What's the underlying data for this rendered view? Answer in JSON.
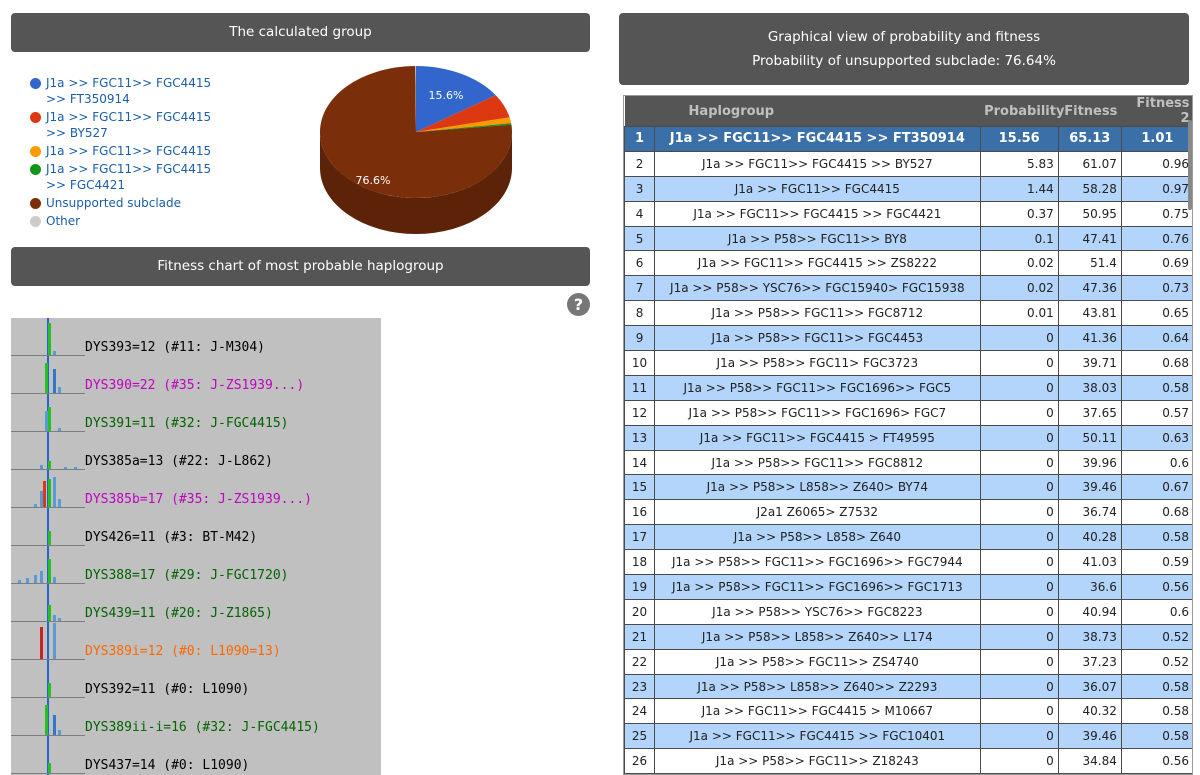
{
  "headers": {
    "calculated_group": "The calculated group",
    "fitness_chart": "Fitness chart of most probable haplogroup",
    "graphical_view": "Graphical view of probability and fitness",
    "unsupported_text": "Probability of unsupported subclade: 76.64%"
  },
  "legend": [
    {
      "label": "J1a >> FGC11>> FGC4415 >> FT350914",
      "color": "#3366cc"
    },
    {
      "label": "J1a >> FGC11>> FGC4415 >> BY527",
      "color": "#dc3912"
    },
    {
      "label": "J1a >> FGC11>> FGC4415",
      "color": "#ff9900"
    },
    {
      "label": "J1a >> FGC11>> FGC4415 >> FGC4421",
      "color": "#109618"
    },
    {
      "label": "Unsupported subclade",
      "color": "#7a2e0a"
    },
    {
      "label": "Other",
      "color": "#cccccc"
    }
  ],
  "chart_data": {
    "type": "pie",
    "slices": [
      {
        "name": "J1a >> FGC11>> FGC4415 >> FT350914",
        "value": 15.6,
        "color": "#3366cc"
      },
      {
        "name": "J1a >> FGC11>> FGC4415 >> BY527",
        "value": 5.83,
        "color": "#dc3912"
      },
      {
        "name": "J1a >> FGC11>> FGC4415",
        "value": 1.44,
        "color": "#ff9900"
      },
      {
        "name": "J1a >> FGC11>> FGC4415 >> FGC4421",
        "value": 0.37,
        "color": "#109618"
      },
      {
        "name": "Unsupported subclade",
        "value": 76.64,
        "color": "#7a2e0a"
      },
      {
        "name": "Other",
        "value": 0.12,
        "color": "#cccccc"
      }
    ],
    "slice_labels": [
      "15.6%",
      "76.6%"
    ]
  },
  "fitness_markers": [
    {
      "label": "DYS393=12 (#11: J-M304)",
      "color": "#000000",
      "bars": [
        {
          "dx": 0,
          "h": 32,
          "c": "#22c022"
        },
        {
          "dx": 5,
          "h": 4,
          "c": "#5b9bd5"
        }
      ]
    },
    {
      "label": "DYS390=22 (#35: J-ZS1939...)",
      "color": "#c000c0",
      "bars": [
        {
          "dx": -3,
          "h": 30,
          "c": "#22c022"
        },
        {
          "dx": 5,
          "h": 24,
          "c": "#3377cc"
        },
        {
          "dx": 10,
          "h": 6,
          "c": "#5b9bd5"
        }
      ]
    },
    {
      "label": "DYS391=11 (#32: J-FGC4415)",
      "color": "#006400",
      "bars": [
        {
          "dx": -3,
          "h": 20,
          "c": "#5b9bd5"
        },
        {
          "dx": 0,
          "h": 24,
          "c": "#22c022"
        },
        {
          "dx": 10,
          "h": 3,
          "c": "#5b9bd5"
        }
      ]
    },
    {
      "label": "DYS385a=13 (#22: J-L862)",
      "color": "#000000",
      "bars": [
        {
          "dx": -8,
          "h": 4,
          "c": "#5b9bd5"
        },
        {
          "dx": 0,
          "h": 8,
          "c": "#22c022"
        },
        {
          "dx": 16,
          "h": 2,
          "c": "#5b9bd5"
        },
        {
          "dx": 26,
          "h": 2,
          "c": "#5b9bd5"
        }
      ]
    },
    {
      "label": "DYS385b=17 (#35: J-ZS1939...)",
      "color": "#c000c0",
      "bars": [
        {
          "dx": -14,
          "h": 3,
          "c": "#5b9bd5"
        },
        {
          "dx": -8,
          "h": 16,
          "c": "#5b9bd5"
        },
        {
          "dx": -5,
          "h": 26,
          "c": "#dc3912"
        },
        {
          "dx": 0,
          "h": 28,
          "c": "#22c022"
        },
        {
          "dx": 5,
          "h": 30,
          "c": "#5b9bd5"
        },
        {
          "dx": 10,
          "h": 8,
          "c": "#5b9bd5"
        }
      ]
    },
    {
      "label": "DYS426=11 (#3: BT-M42)",
      "color": "#000000",
      "bars": [
        {
          "dx": 0,
          "h": 14,
          "c": "#22c022"
        }
      ]
    },
    {
      "label": "DYS388=17 (#29: J-FGC1720)",
      "color": "#006400",
      "bars": [
        {
          "dx": -30,
          "h": 3,
          "c": "#5b9bd5"
        },
        {
          "dx": -22,
          "h": 5,
          "c": "#5b9bd5"
        },
        {
          "dx": -14,
          "h": 8,
          "c": "#5b9bd5"
        },
        {
          "dx": -8,
          "h": 12,
          "c": "#5b9bd5"
        },
        {
          "dx": 0,
          "h": 24,
          "c": "#22c022"
        },
        {
          "dx": 5,
          "h": 6,
          "c": "#5b9bd5"
        }
      ]
    },
    {
      "label": "DYS439=11 (#20: J-Z1865)",
      "color": "#006400",
      "bars": [
        {
          "dx": 0,
          "h": 16,
          "c": "#22c022"
        },
        {
          "dx": 5,
          "h": 6,
          "c": "#5b9bd5"
        },
        {
          "dx": 10,
          "h": 3,
          "c": "#5b9bd5"
        }
      ]
    },
    {
      "label": "DYS389i=12 (#0: L1090=13)",
      "color": "#ff6600",
      "bars": [
        {
          "dx": -8,
          "h": 32,
          "c": "#cc2222"
        },
        {
          "dx": 5,
          "h": 36,
          "c": "#5b9bd5"
        }
      ]
    },
    {
      "label": "DYS392=11 (#0: L1090)",
      "color": "#000000",
      "bars": [
        {
          "dx": 0,
          "h": 14,
          "c": "#22c022"
        }
      ]
    },
    {
      "label": "DYS389ii-i=16 (#32: J-FGC4415)",
      "color": "#006400",
      "bars": [
        {
          "dx": -3,
          "h": 30,
          "c": "#22c022"
        },
        {
          "dx": 5,
          "h": 20,
          "c": "#3377cc"
        },
        {
          "dx": 10,
          "h": 5,
          "c": "#5b9bd5"
        }
      ]
    },
    {
      "label": "DYS437=14 (#0: L1090)",
      "color": "#000000",
      "bars": [
        {
          "dx": 0,
          "h": 10,
          "c": "#22c022"
        }
      ]
    }
  ],
  "table": {
    "columns": [
      "Haplogroup",
      "Probability",
      "Fitness",
      "Fitness 2"
    ],
    "rows": [
      {
        "n": "1",
        "hg": "J1a >> FGC11>> FGC4415 >> FT350914",
        "p": "15.56",
        "f": "65.13",
        "f2": "1.01"
      },
      {
        "n": "2",
        "hg": "J1a >> FGC11>> FGC4415 >> BY527",
        "p": "5.83",
        "f": "61.07",
        "f2": "0.96"
      },
      {
        "n": "3",
        "hg": "J1a >> FGC11>> FGC4415",
        "p": "1.44",
        "f": "58.28",
        "f2": "0.97"
      },
      {
        "n": "4",
        "hg": "J1a >> FGC11>> FGC4415 >> FGC4421",
        "p": "0.37",
        "f": "50.95",
        "f2": "0.75"
      },
      {
        "n": "5",
        "hg": "J1a >> P58>> FGC11>> BY8",
        "p": "0.1",
        "f": "47.41",
        "f2": "0.76"
      },
      {
        "n": "6",
        "hg": "J1a >> FGC11>> FGC4415 >> ZS8222",
        "p": "0.02",
        "f": "51.4",
        "f2": "0.69"
      },
      {
        "n": "7",
        "hg": "J1a >> P58>> YSC76>> FGC15940> FGC15938",
        "p": "0.02",
        "f": "47.36",
        "f2": "0.73"
      },
      {
        "n": "8",
        "hg": "J1a >> P58>> FGC11>> FGC8712",
        "p": "0.01",
        "f": "43.81",
        "f2": "0.65"
      },
      {
        "n": "9",
        "hg": "J1a >> P58>> FGC11>> FGC4453",
        "p": "0",
        "f": "41.36",
        "f2": "0.64"
      },
      {
        "n": "10",
        "hg": "J1a >> P58>> FGC11> FGC3723",
        "p": "0",
        "f": "39.71",
        "f2": "0.68"
      },
      {
        "n": "11",
        "hg": "J1a >> P58>> FGC11>> FGC1696>> FGC5",
        "p": "0",
        "f": "38.03",
        "f2": "0.58"
      },
      {
        "n": "12",
        "hg": "J1a >> P58>> FGC11>> FGC1696> FGC7",
        "p": "0",
        "f": "37.65",
        "f2": "0.57"
      },
      {
        "n": "13",
        "hg": "J1a >> FGC11>> FGC4415 > FT49595",
        "p": "0",
        "f": "50.11",
        "f2": "0.63"
      },
      {
        "n": "14",
        "hg": "J1a >> P58>> FGC11>> FGC8812",
        "p": "0",
        "f": "39.96",
        "f2": "0.6"
      },
      {
        "n": "15",
        "hg": "J1a >> P58>> L858>> Z640> BY74",
        "p": "0",
        "f": "39.46",
        "f2": "0.67"
      },
      {
        "n": "16",
        "hg": "J2a1 Z6065> Z7532",
        "p": "0",
        "f": "36.74",
        "f2": "0.68"
      },
      {
        "n": "17",
        "hg": "J1a >> P58>> L858> Z640",
        "p": "0",
        "f": "40.28",
        "f2": "0.58"
      },
      {
        "n": "18",
        "hg": "J1a >> P58>> FGC11>> FGC1696>> FGC7944",
        "p": "0",
        "f": "41.03",
        "f2": "0.59"
      },
      {
        "n": "19",
        "hg": "J1a >> P58>> FGC11>> FGC1696>> FGC1713",
        "p": "0",
        "f": "36.6",
        "f2": "0.56"
      },
      {
        "n": "20",
        "hg": "J1a >> P58>> YSC76>> FGC8223",
        "p": "0",
        "f": "40.94",
        "f2": "0.6"
      },
      {
        "n": "21",
        "hg": "J1a >> P58>> L858>> Z640>> L174",
        "p": "0",
        "f": "38.73",
        "f2": "0.52"
      },
      {
        "n": "22",
        "hg": "J1a >> P58>> FGC11>> ZS4740",
        "p": "0",
        "f": "37.23",
        "f2": "0.52"
      },
      {
        "n": "23",
        "hg": "J1a >> P58>> L858>> Z640>> Z2293",
        "p": "0",
        "f": "36.07",
        "f2": "0.58"
      },
      {
        "n": "24",
        "hg": "J1a >> FGC11>> FGC4415 > M10667",
        "p": "0",
        "f": "40.32",
        "f2": "0.58"
      },
      {
        "n": "25",
        "hg": "J1a >> FGC11>> FGC4415 >> FGC10401",
        "p": "0",
        "f": "39.46",
        "f2": "0.58"
      },
      {
        "n": "26",
        "hg": "J1a >> P58>> FGC11>> Z18243",
        "p": "0",
        "f": "34.84",
        "f2": "0.56"
      }
    ]
  }
}
